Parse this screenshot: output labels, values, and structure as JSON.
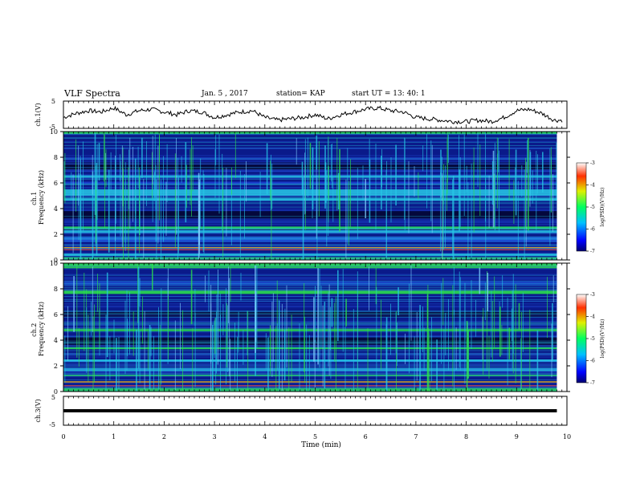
{
  "header": {
    "title": "VLF Spectra",
    "date": "Jan. 5 , 2017",
    "station": "station= KAP",
    "start": "start UT = 13: 40: 1"
  },
  "chart_data": [
    {
      "type": "line",
      "ylabel": "ch.1(V)",
      "ylim": [
        -5,
        5
      ],
      "yticks": [
        "5",
        "-5"
      ],
      "xlim": [
        0,
        10
      ],
      "x": [
        0,
        0.25,
        0.5,
        0.75,
        1,
        1.25,
        1.5,
        1.75,
        2,
        2.25,
        2.5,
        2.75,
        3,
        3.25,
        3.5,
        3.75,
        4,
        4.25,
        4.5,
        4.75,
        5,
        5.25,
        5.5,
        5.75,
        6,
        6.25,
        6.5,
        6.75,
        7,
        7.25,
        7.5,
        7.75,
        8,
        8.25,
        8.5,
        8.75,
        9,
        9.25,
        9.5,
        9.75
      ],
      "values": [
        -1,
        0.5,
        1.5,
        1,
        2.5,
        0,
        1.5,
        2,
        1,
        0,
        1.5,
        1,
        -1,
        0,
        1,
        1.5,
        -1,
        -2,
        -1.5,
        -1,
        0,
        -1.5,
        0,
        1,
        2,
        2.5,
        1.5,
        1,
        -1,
        -1.5,
        -2,
        -2.5,
        -2.5,
        -2,
        -2.5,
        -1,
        1.5,
        2,
        0.5,
        -2
      ]
    },
    {
      "type": "heatmap",
      "ylabel": "ch.1 Frequency (kHz)",
      "ylim": [
        0,
        10
      ],
      "yticks": [
        "0",
        "2",
        "4",
        "6",
        "8",
        "10"
      ],
      "xlim": [
        0,
        10
      ],
      "colorbar": {
        "label": "log(PSD)(V²/Hz)",
        "range": [
          -7,
          -3
        ],
        "ticks": [
          "-3",
          "-4",
          "-5",
          "-6",
          "-7"
        ]
      }
    },
    {
      "type": "heatmap",
      "ylabel": "ch.2 Frequency (kHz)",
      "ylim": [
        0,
        10
      ],
      "yticks": [
        "0",
        "2",
        "4",
        "6",
        "8",
        "10"
      ],
      "xlim": [
        0,
        10
      ],
      "colorbar": {
        "label": "log(PSD)(V²/Hz)",
        "range": [
          -7,
          -3
        ],
        "ticks": [
          "-3",
          "-4",
          "-5",
          "-6",
          "-7"
        ]
      }
    },
    {
      "type": "line",
      "ylabel": "ch.3(V)",
      "ylim": [
        -5,
        5
      ],
      "yticks": [
        "5",
        "-5"
      ],
      "xlim": [
        0,
        10
      ],
      "x": [
        0,
        9.8
      ],
      "values": [
        0,
        0
      ]
    }
  ],
  "xaxis": {
    "label": "Time (min)",
    "ticks": [
      "0",
      "1",
      "2",
      "3",
      "4",
      "5",
      "6",
      "7",
      "8",
      "9",
      "10"
    ]
  },
  "colors": {
    "spectrogram_bg": "#0a1a8a",
    "band_green": "#2ce84a",
    "band_cyan": "#27c8e6",
    "band_red": "#e83a1e",
    "band_dark": "#04062e"
  }
}
